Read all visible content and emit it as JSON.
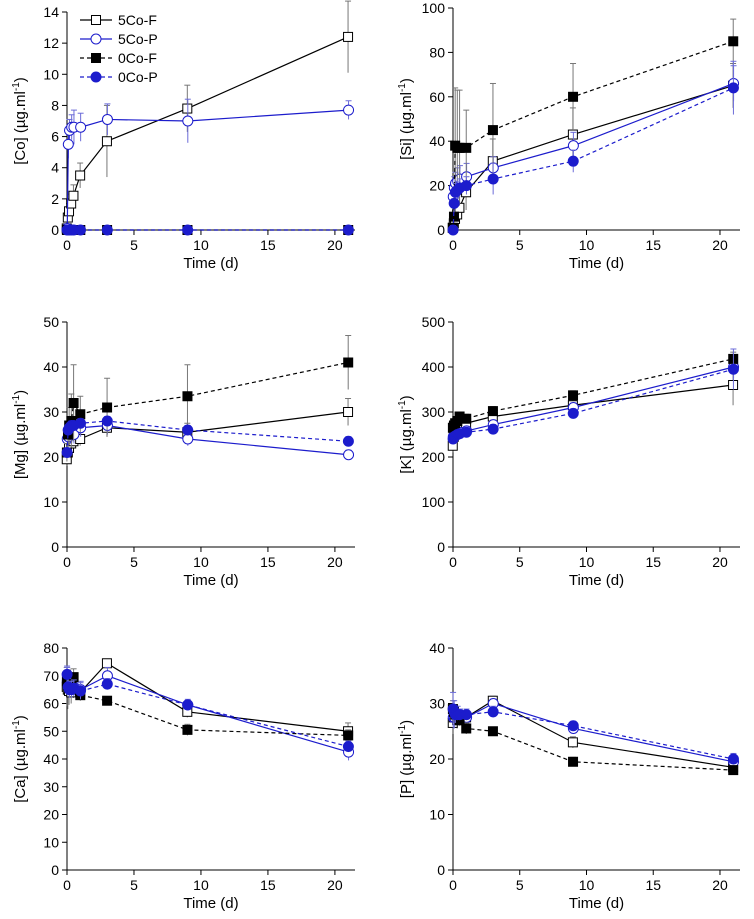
{
  "colors": {
    "F": "#000000",
    "P": "#1c1ccc"
  },
  "legend": [
    {
      "key": "5Co-F",
      "label": "5Co-F"
    },
    {
      "key": "5Co-P",
      "label": "5Co-P"
    },
    {
      "key": "0Co-F",
      "label": "0Co-F"
    },
    {
      "key": "0Co-P",
      "label": "0Co-P"
    }
  ],
  "chart_data": [
    {
      "type": "line",
      "id": "co",
      "ylabel": "[Co] (µg.ml",
      "ylabel_sup": "-1",
      "ylabel_tail": ")",
      "xlabel": "Time (d)",
      "xlim": [
        0,
        21.5
      ],
      "ylim": [
        0,
        14
      ],
      "xticks": [
        0,
        5,
        10,
        15,
        20
      ],
      "yticks": [
        0,
        2,
        4,
        6,
        8,
        10,
        12,
        14
      ],
      "x": [
        0,
        0.08,
        0.17,
        0.33,
        0.5,
        1,
        3,
        9,
        21
      ],
      "series": [
        {
          "name": "5Co-F",
          "values": [
            0.1,
            0.8,
            1.2,
            1.7,
            2.2,
            3.5,
            5.7,
            7.8,
            12.4
          ],
          "err": [
            0.2,
            0.4,
            0.5,
            0.6,
            0.7,
            0.8,
            2.3,
            1.5,
            2.3
          ]
        },
        {
          "name": "5Co-P",
          "values": [
            0.1,
            5.5,
            6.4,
            6.6,
            6.6,
            6.6,
            7.1,
            7.0,
            7.7
          ],
          "err": [
            0.2,
            0.9,
            0.7,
            0.8,
            1.1,
            0.9,
            1.0,
            1.4,
            0.6
          ]
        },
        {
          "name": "0Co-F",
          "values": [
            0,
            0,
            0,
            0,
            0,
            0,
            0,
            0,
            0
          ],
          "err": [
            0,
            0,
            0,
            0,
            0,
            0,
            0,
            0,
            0
          ]
        },
        {
          "name": "0Co-P",
          "values": [
            0,
            0,
            0,
            0,
            0,
            0,
            0,
            0,
            0
          ],
          "err": [
            0,
            0,
            0,
            0,
            0,
            0,
            0,
            0,
            0
          ]
        }
      ]
    },
    {
      "type": "line",
      "id": "si",
      "ylabel": "[Si] (µg.ml",
      "ylabel_sup": "-1",
      "ylabel_tail": ")",
      "xlabel": "Time (d)",
      "xlim": [
        0,
        21.5
      ],
      "ylim": [
        0,
        100
      ],
      "xticks": [
        0,
        5,
        10,
        15,
        20
      ],
      "yticks": [
        0,
        20,
        40,
        60,
        80,
        100
      ],
      "x": [
        0,
        0.08,
        0.17,
        0.33,
        0.5,
        1,
        3,
        9,
        21
      ],
      "series": [
        {
          "name": "5Co-F",
          "values": [
            1,
            3,
            5,
            7,
            10,
            17,
            31,
            43,
            65
          ],
          "err": [
            2,
            3,
            4,
            5,
            6,
            8,
            10,
            12,
            10
          ]
        },
        {
          "name": "5Co-P",
          "values": [
            15,
            19,
            21,
            22,
            23,
            24,
            28,
            38,
            66
          ],
          "err": [
            4,
            5,
            5,
            6,
            6,
            6,
            5,
            6,
            8
          ]
        },
        {
          "name": "0Co-F",
          "values": [
            1,
            6,
            38,
            37,
            37,
            37,
            45,
            60,
            85
          ],
          "err": [
            2,
            8,
            26,
            26,
            26,
            17,
            21,
            15,
            10
          ]
        },
        {
          "name": "0Co-P",
          "values": [
            0,
            12,
            17,
            18,
            19,
            20,
            23,
            31,
            64
          ],
          "err": [
            2,
            4,
            4,
            4,
            4,
            4,
            7,
            5,
            12
          ]
        }
      ]
    },
    {
      "type": "line",
      "id": "mg",
      "ylabel": "[Mg] (µg.ml",
      "ylabel_sup": "-1",
      "ylabel_tail": ")",
      "xlabel": "Time (d)",
      "xlim": [
        0,
        21.5
      ],
      "ylim": [
        0,
        50
      ],
      "xticks": [
        0,
        5,
        10,
        15,
        20
      ],
      "yticks": [
        0,
        10,
        20,
        30,
        40,
        50
      ],
      "x": [
        0,
        0.08,
        0.17,
        0.33,
        0.5,
        1,
        3,
        9,
        21
      ],
      "series": [
        {
          "name": "5Co-F",
          "values": [
            19.5,
            21,
            22,
            23,
            23.5,
            24,
            26.5,
            25.5,
            30
          ],
          "err": [
            1.5,
            1.5,
            1.5,
            1.5,
            1.5,
            1.5,
            2,
            2,
            3
          ]
        },
        {
          "name": "5Co-P",
          "values": [
            24,
            24.5,
            25,
            25,
            25,
            26.5,
            27,
            24,
            20.5
          ],
          "err": [
            2,
            2,
            2,
            2,
            2,
            2,
            2,
            1.5,
            1
          ]
        },
        {
          "name": "0Co-F",
          "values": [
            21,
            25,
            27,
            28,
            32,
            29.5,
            31,
            33.5,
            41
          ],
          "err": [
            2,
            3,
            4,
            6,
            8.5,
            4,
            6.5,
            7,
            6
          ]
        },
        {
          "name": "0Co-P",
          "values": [
            21,
            26,
            26.5,
            27,
            27,
            27.5,
            28,
            26,
            23.5
          ],
          "err": [
            1,
            1,
            1,
            1,
            1,
            1,
            1,
            1,
            1
          ]
        }
      ]
    },
    {
      "type": "line",
      "id": "k",
      "ylabel": "[K] (µg.ml",
      "ylabel_sup": "-1",
      "ylabel_tail": ")",
      "xlabel": "Time (d)",
      "xlim": [
        0,
        21.5
      ],
      "ylim": [
        0,
        500
      ],
      "xticks": [
        0,
        5,
        10,
        15,
        20
      ],
      "yticks": [
        0,
        100,
        200,
        300,
        400,
        500
      ],
      "x": [
        0,
        0.08,
        0.17,
        0.33,
        0.5,
        1,
        3,
        9,
        21
      ],
      "series": [
        {
          "name": "5Co-F",
          "values": [
            225,
            245,
            255,
            262,
            270,
            275,
            290,
            315,
            360
          ],
          "err": [
            15,
            15,
            15,
            15,
            15,
            15,
            15,
            15,
            45
          ]
        },
        {
          "name": "5Co-P",
          "values": [
            245,
            250,
            250,
            252,
            255,
            258,
            272,
            310,
            400
          ],
          "err": [
            10,
            10,
            10,
            10,
            10,
            10,
            10,
            10,
            25
          ]
        },
        {
          "name": "0Co-F",
          "values": [
            265,
            270,
            275,
            280,
            290,
            285,
            302,
            337,
            418
          ],
          "err": [
            10,
            10,
            10,
            10,
            10,
            10,
            10,
            10,
            15
          ]
        },
        {
          "name": "0Co-P",
          "values": [
            240,
            245,
            247,
            250,
            252,
            255,
            262,
            297,
            395
          ],
          "err": [
            8,
            8,
            8,
            8,
            8,
            8,
            10,
            10,
            45
          ]
        }
      ]
    },
    {
      "type": "line",
      "id": "ca",
      "ylabel": "[Ca] (µg.ml",
      "ylabel_sup": "-1",
      "ylabel_tail": ")",
      "xlabel": "Time (d)",
      "xlim": [
        0,
        21.5
      ],
      "ylim": [
        0,
        80
      ],
      "xticks": [
        0,
        5,
        10,
        15,
        20
      ],
      "yticks": [
        0,
        10,
        20,
        30,
        40,
        50,
        60,
        70,
        80
      ],
      "x": [
        0,
        0.08,
        0.17,
        0.33,
        0.5,
        1,
        3,
        9,
        21
      ],
      "series": [
        {
          "name": "5Co-F",
          "values": [
            66,
            65,
            64.5,
            64,
            65,
            64,
            74.5,
            57,
            50
          ],
          "err": [
            7,
            7,
            5,
            4,
            3,
            2,
            1.5,
            2,
            3
          ]
        },
        {
          "name": "5Co-P",
          "values": [
            68,
            67,
            67,
            66.5,
            66,
            65,
            70,
            59.5,
            42.5
          ],
          "err": [
            5,
            4,
            3,
            3,
            3,
            3,
            3,
            2,
            3
          ]
        },
        {
          "name": "0Co-F",
          "values": [
            68,
            69,
            68,
            66,
            69.5,
            63,
            61,
            50.5,
            48.5
          ],
          "err": [
            3,
            3,
            3,
            3,
            3,
            2,
            1.5,
            2,
            2
          ]
        },
        {
          "name": "0Co-P",
          "values": [
            70.5,
            66,
            65,
            65,
            65.5,
            64.5,
            67,
            59.5,
            44.5
          ],
          "err": [
            3,
            3,
            3,
            3,
            3,
            3,
            2,
            1.5,
            2
          ]
        }
      ]
    },
    {
      "type": "line",
      "id": "p",
      "ylabel": "[P] (µg.ml",
      "ylabel_sup": "-1",
      "ylabel_tail": ")",
      "xlabel": "Time (d)",
      "xlim": [
        0,
        21.5
      ],
      "ylim": [
        0,
        40
      ],
      "xticks": [
        0,
        5,
        10,
        15,
        20
      ],
      "yticks": [
        0,
        10,
        20,
        30,
        40
      ],
      "x": [
        0,
        0.08,
        0.17,
        0.33,
        0.5,
        1,
        3,
        9,
        21
      ],
      "series": [
        {
          "name": "5Co-F",
          "values": [
            26.5,
            27.5,
            27.5,
            27,
            27,
            27.5,
            30.5,
            23,
            18.5
          ],
          "err": [
            2,
            2,
            1.5,
            1.5,
            1,
            1,
            0.8,
            1,
            0.8
          ]
        },
        {
          "name": "5Co-P",
          "values": [
            27.5,
            27.5,
            28,
            28,
            28,
            27.5,
            30,
            25.5,
            19.5
          ],
          "err": [
            2,
            2,
            1.5,
            1.5,
            1,
            1,
            0.8,
            1,
            1
          ]
        },
        {
          "name": "0Co-F",
          "values": [
            29,
            28.5,
            28,
            27.5,
            27,
            25.5,
            25,
            19.5,
            18
          ],
          "err": [
            1.5,
            1,
            1,
            1,
            1,
            1,
            0.6,
            0.8,
            0.6
          ]
        },
        {
          "name": "0Co-P",
          "values": [
            29,
            28.5,
            28,
            28,
            28,
            28,
            28.5,
            26,
            20
          ],
          "err": [
            3,
            2,
            1.5,
            1,
            1,
            1,
            1,
            0.8,
            1
          ]
        }
      ]
    }
  ]
}
